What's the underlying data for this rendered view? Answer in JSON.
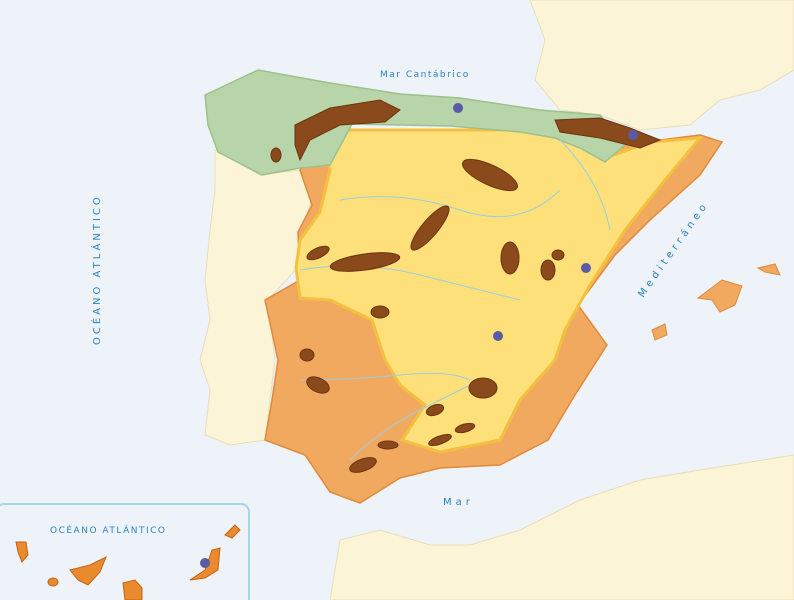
{
  "labels": {
    "cantabrico": "Mar Cantábrico",
    "atlantico": "OCÉANO ATLÁNTICO",
    "mediterraneo": "Mediterráneo",
    "mar": "Mar",
    "inset_atlantico": "OCÉANO ATLÁNTICO"
  },
  "colors": {
    "sea": "#eef3f9",
    "foreign_land": "#fbf4d6",
    "zone_green": "#b7d5a8",
    "zone_yellow": "#fde07a",
    "zone_orange": "#f0a95f",
    "zone_brown": "#8a4a1c",
    "city_dot": "#5a5aa6",
    "river": "#9ccde0",
    "inset_border": "#a6d8e4"
  },
  "icons": [
    "city-dot"
  ]
}
